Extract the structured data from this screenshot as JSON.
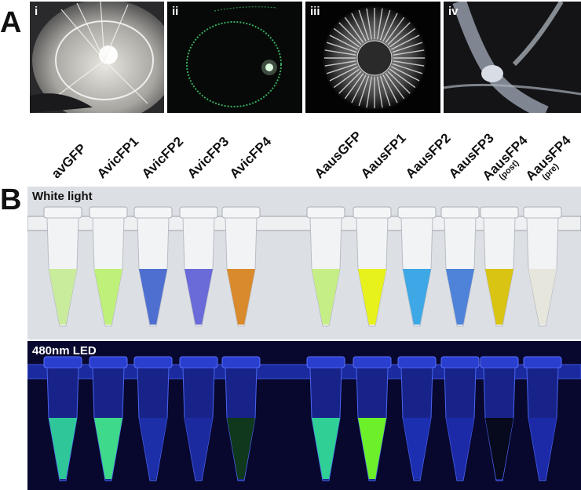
{
  "panels": {
    "a_label": "A",
    "b_label": "B"
  },
  "photos": [
    {
      "label": "i",
      "subject": "jellyfish-dish"
    },
    {
      "label": "ii",
      "subject": "fluorescent-ring"
    },
    {
      "label": "iii",
      "subject": "jellyfish-dark"
    },
    {
      "label": "iv",
      "subject": "tentacle-closeup"
    }
  ],
  "tubes": {
    "labels": [
      {
        "name": "avGFP",
        "sub": ""
      },
      {
        "name": "AvicFP1",
        "sub": ""
      },
      {
        "name": "AvicFP2",
        "sub": ""
      },
      {
        "name": "AvicFP3",
        "sub": ""
      },
      {
        "name": "AvicFP4",
        "sub": ""
      },
      {
        "name": "AausGFP",
        "sub": ""
      },
      {
        "name": "AausFP1",
        "sub": ""
      },
      {
        "name": "AausFP2",
        "sub": ""
      },
      {
        "name": "AausFP3",
        "sub": ""
      },
      {
        "name": "AausFP4",
        "sub": "(post)"
      },
      {
        "name": "AausFP4",
        "sub": "(pre)"
      }
    ],
    "white_light_colors": [
      "#c9ec9c",
      "#bff07a",
      "#4f6fd0",
      "#6a6ad8",
      "#d98a2c",
      "#c6ee86",
      "#e7f21c",
      "#3ea8e6",
      "#4f82d9",
      "#d9c414",
      "#e6e6dc"
    ],
    "led_colors": [
      "#2fc79a",
      "#3ed98a",
      "#1c2fa8",
      "#1c2aa0",
      "#10381c",
      "#2fcf96",
      "#6cf02a",
      "#1c2fb0",
      "#1c2aa8",
      "#060a1c",
      "#1c2aa8"
    ]
  },
  "strips": {
    "white": {
      "title": "White light",
      "bg": "#dcdfe4"
    },
    "led": {
      "title": "480nm LED",
      "bg": "#08082e"
    }
  }
}
